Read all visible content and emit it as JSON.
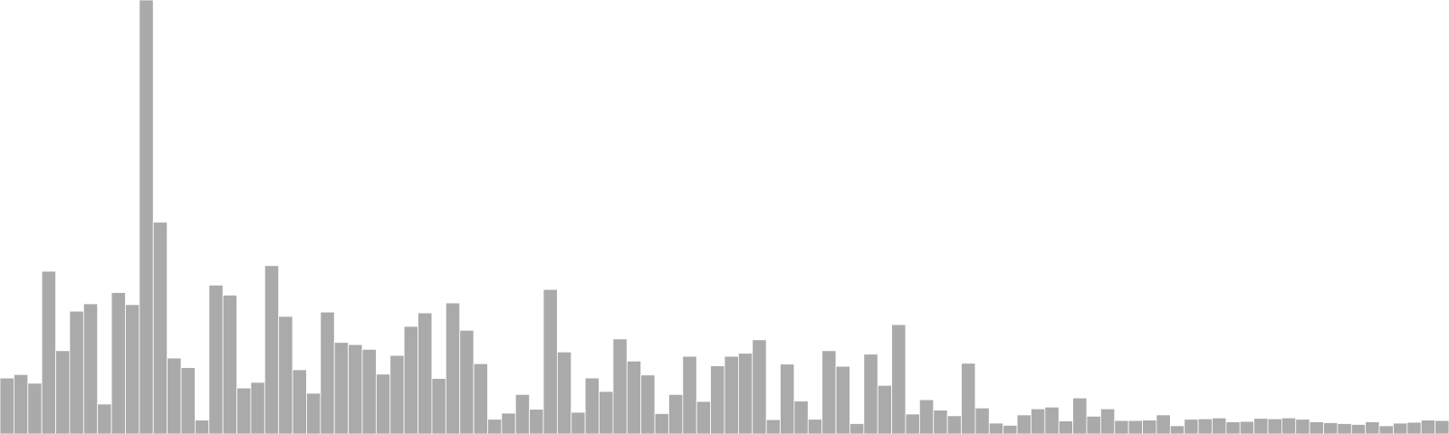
{
  "chart_data": {
    "type": "bar",
    "title": "",
    "xlabel": "",
    "ylabel": "",
    "ylim": [
      0,
      100
    ],
    "bar_color": "#aaaaaa",
    "bar_edge_color": "#ffffff",
    "grid": false,
    "legend": "none",
    "values": [
      12.9,
      13.7,
      11.7,
      37.5,
      19.2,
      28.3,
      30.0,
      6.9,
      32.6,
      29.8,
      100.0,
      48.8,
      17.5,
      15.3,
      3.2,
      34.3,
      32.0,
      10.6,
      11.9,
      38.8,
      27.1,
      14.8,
      9.4,
      28.1,
      21.1,
      20.6,
      19.5,
      13.8,
      18.1,
      24.8,
      27.9,
      12.8,
      30.2,
      23.9,
      16.2,
      3.4,
      4.8,
      9.1,
      5.7,
      33.3,
      18.9,
      5.0,
      12.9,
      9.8,
      21.9,
      16.8,
      13.6,
      4.7,
      9.1,
      17.9,
      7.5,
      15.7,
      17.9,
      18.6,
      21.7,
      3.3,
      16.1,
      7.6,
      3.4,
      19.2,
      15.6,
      2.4,
      18.4,
      11.2,
      25.2,
      4.6,
      7.9,
      5.5,
      4.2,
      16.3,
      6.0,
      2.5,
      2.0,
      4.4,
      5.8,
      6.2,
      3.0,
      8.3,
      4.1,
      5.8,
      3.1,
      3.1,
      3.2,
      4.4,
      1.9,
      3.4,
      3.5,
      3.7,
      2.8,
      2.9,
      3.6,
      3.5,
      3.7,
      3.4,
      2.8,
      2.6,
      2.4,
      2.2,
      2.8,
      1.9,
      2.5,
      2.7,
      3.2,
      3.1
    ]
  }
}
